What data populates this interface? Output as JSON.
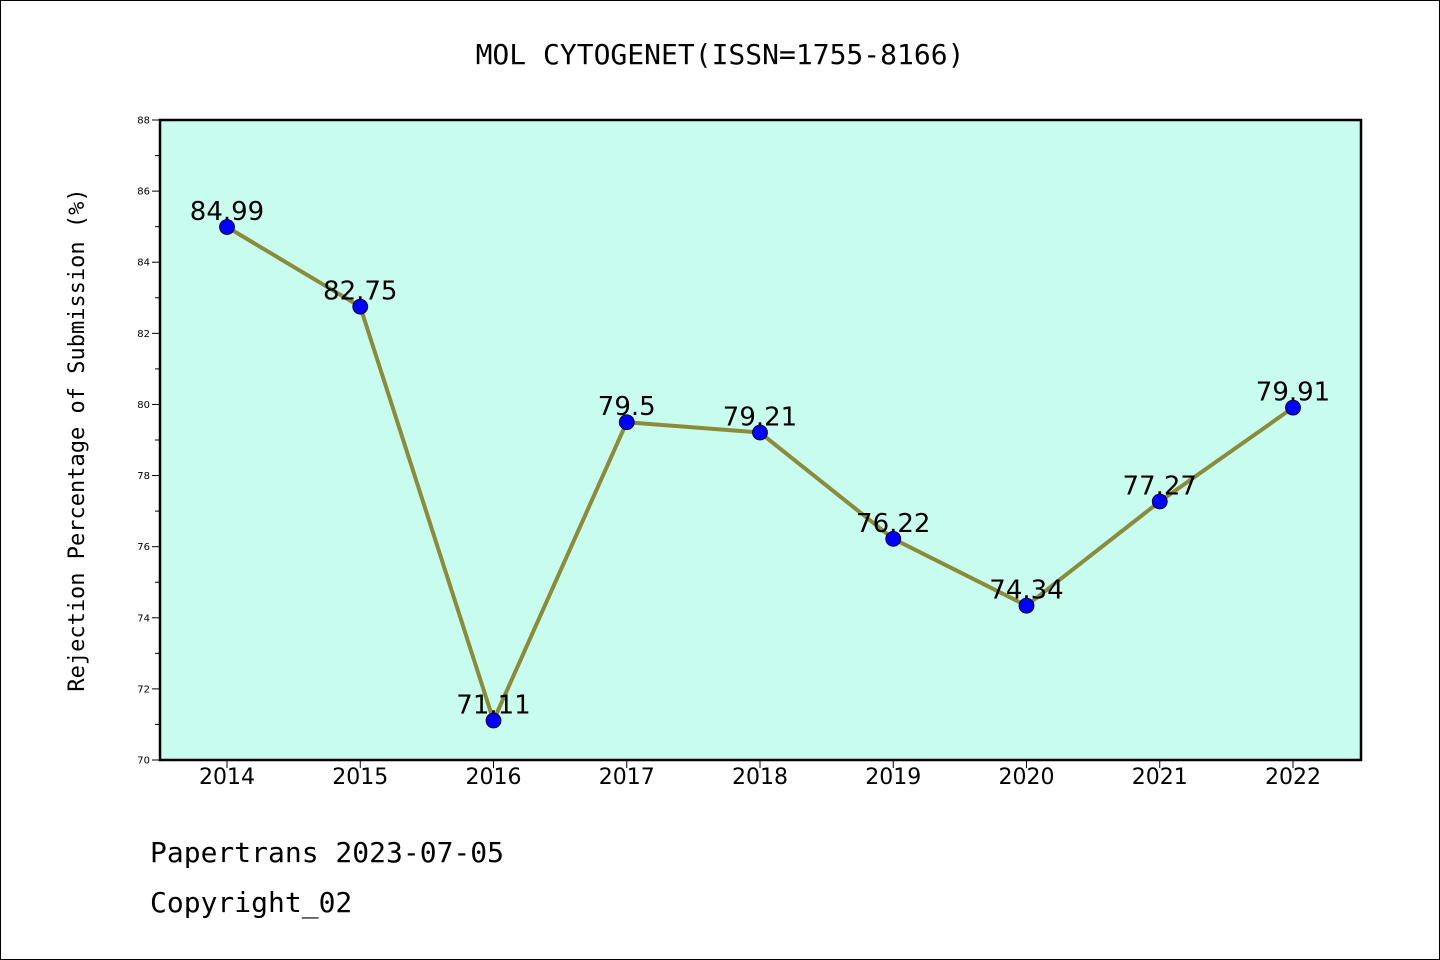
{
  "title": "MOL CYTOGENET(ISSN=1755-8166)",
  "footer": {
    "line1": "Papertrans 2023-07-05",
    "line2": "Copyright_02"
  },
  "chart_data": {
    "type": "line",
    "title": "MOL CYTOGENET(ISSN=1755-8166)",
    "xlabel": "",
    "ylabel": "Rejection Percentage of Submission (%)",
    "categories": [
      "2014",
      "2015",
      "2016",
      "2017",
      "2018",
      "2019",
      "2020",
      "2021",
      "2022"
    ],
    "values": [
      84.99,
      82.75,
      71.11,
      79.5,
      79.21,
      76.22,
      74.34,
      77.27,
      79.91
    ],
    "data_labels": [
      "84.99",
      "82.75",
      "71.11",
      "79.5",
      "79.21",
      "76.22",
      "74.34",
      "77.27",
      "79.91"
    ],
    "ylim": [
      70,
      88
    ],
    "yticks": [
      70,
      72,
      74,
      76,
      78,
      80,
      82,
      84,
      86,
      88
    ],
    "grid": false,
    "colors": {
      "plot_background": "#c8fcee",
      "line": "#8b8b3a",
      "marker": "#0000ff"
    }
  }
}
